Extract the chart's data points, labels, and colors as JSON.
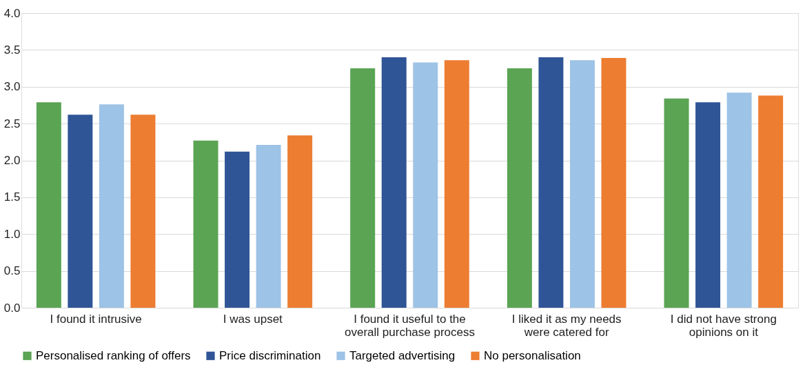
{
  "chart_data": {
    "type": "bar",
    "categories": [
      "I found it intrusive",
      "I was upset",
      "I found it useful to the overall purchase process",
      "I liked it as my needs were catered for",
      "I did not have strong opinions on it"
    ],
    "series": [
      {
        "name": "Personalised ranking of offers",
        "color": "#5aa454",
        "values": [
          2.79,
          2.27,
          3.25,
          3.25,
          2.84
        ]
      },
      {
        "name": "Price discrimination",
        "color": "#2f5597",
        "values": [
          2.62,
          2.12,
          3.4,
          3.4,
          2.79
        ]
      },
      {
        "name": "Targeted advertising",
        "color": "#9dc3e6",
        "values": [
          2.76,
          2.21,
          3.33,
          3.36,
          2.92
        ]
      },
      {
        "name": "No personalisation",
        "color": "#ed7d31",
        "values": [
          2.62,
          2.34,
          3.36,
          3.39,
          2.88
        ]
      }
    ],
    "ylim": [
      0,
      4
    ],
    "yticks": [
      {
        "value": 0,
        "label": "0.0"
      },
      0.5,
      {
        "value": 1,
        "label": "1.0"
      },
      1.5,
      {
        "value": 2,
        "label": "2.0"
      },
      2.5,
      {
        "value": 3,
        "label": "3.0"
      },
      3.5,
      {
        "value": 4,
        "label": "4.0"
      }
    ],
    "grid": "y",
    "legend": "bottom"
  }
}
